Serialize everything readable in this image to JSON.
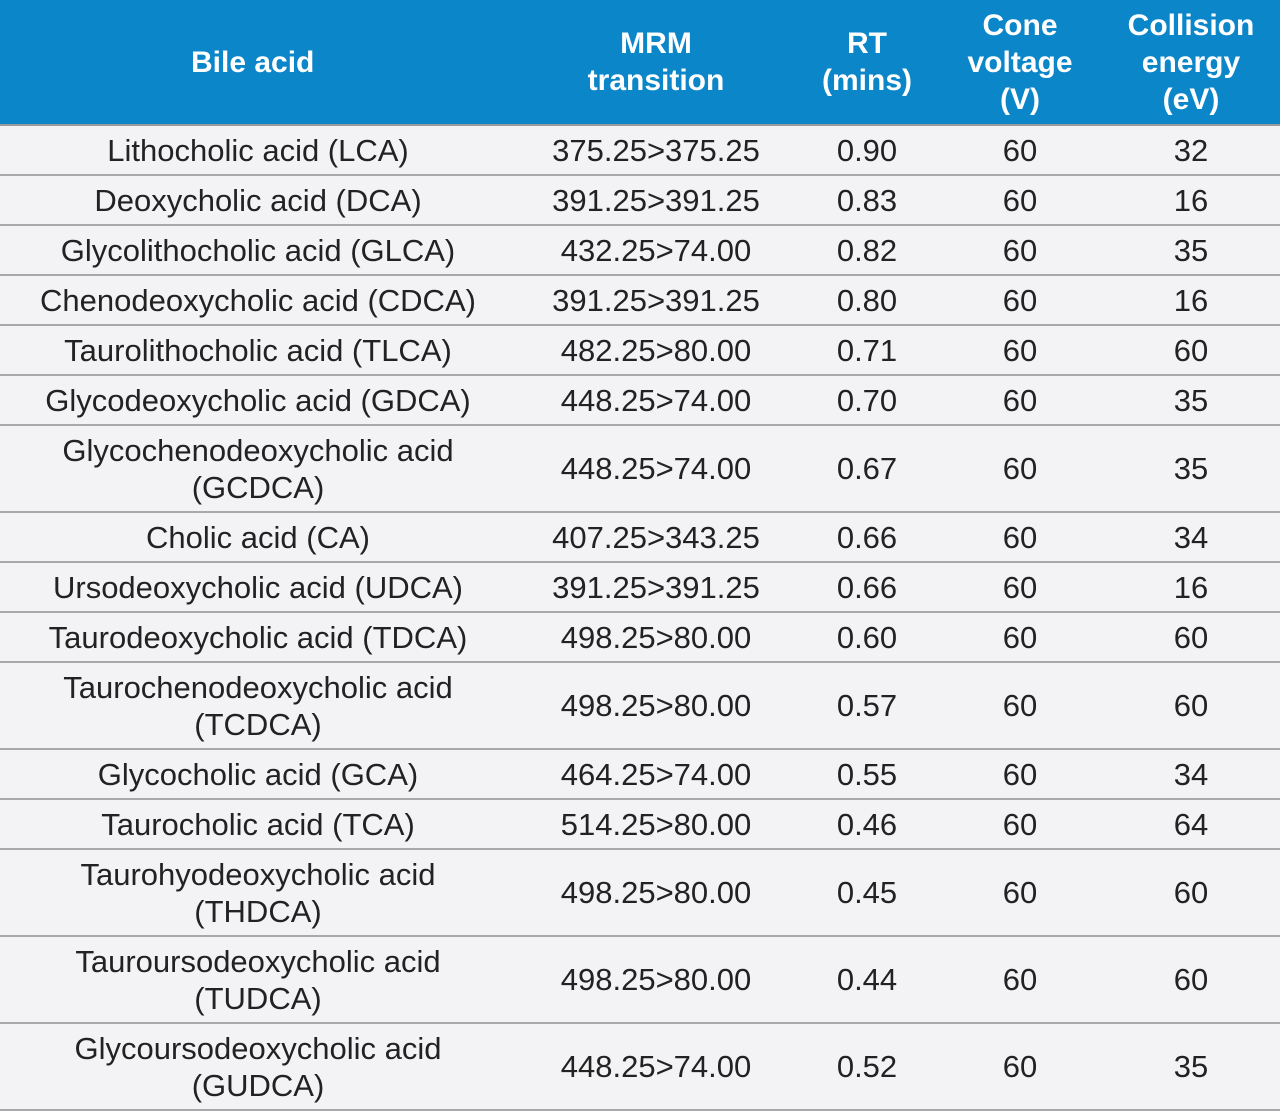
{
  "table": {
    "headers": {
      "bile_acid": "Bile acid",
      "mrm_line1": "MRM",
      "mrm_line2": "transition",
      "rt_line1": "RT",
      "rt_line2": "(mins)",
      "cone_line1": "Cone",
      "cone_line2": "voltage",
      "cone_line3": "(V)",
      "collision_line1": "Collision",
      "collision_line2": "energy",
      "collision_line3": "(eV)"
    },
    "rows": [
      {
        "name": "Lithocholic acid (LCA)",
        "name2": "",
        "mrm": "375.25>375.25",
        "rt": "0.90",
        "cone": "60",
        "collision": "32"
      },
      {
        "name": "Deoxycholic acid (DCA)",
        "name2": "",
        "mrm": "391.25>391.25",
        "rt": "0.83",
        "cone": "60",
        "collision": "16"
      },
      {
        "name": "Glycolithocholic acid (GLCA)",
        "name2": "",
        "mrm": "432.25>74.00",
        "rt": "0.82",
        "cone": "60",
        "collision": "35"
      },
      {
        "name": "Chenodeoxycholic acid (CDCA)",
        "name2": "",
        "mrm": "391.25>391.25",
        "rt": "0.80",
        "cone": "60",
        "collision": "16"
      },
      {
        "name": "Taurolithocholic acid (TLCA)",
        "name2": "",
        "mrm": "482.25>80.00",
        "rt": "0.71",
        "cone": "60",
        "collision": "60"
      },
      {
        "name": "Glycodeoxycholic acid (GDCA)",
        "name2": "",
        "mrm": "448.25>74.00",
        "rt": "0.70",
        "cone": "60",
        "collision": "35"
      },
      {
        "name": "Glycochenodeoxycholic acid",
        "name2": "(GCDCA)",
        "mrm": "448.25>74.00",
        "rt": "0.67",
        "cone": "60",
        "collision": "35"
      },
      {
        "name": "Cholic acid (CA)",
        "name2": "",
        "mrm": "407.25>343.25",
        "rt": "0.66",
        "cone": "60",
        "collision": "34"
      },
      {
        "name": "Ursodeoxycholic acid (UDCA)",
        "name2": "",
        "mrm": "391.25>391.25",
        "rt": "0.66",
        "cone": "60",
        "collision": "16"
      },
      {
        "name": "Taurodeoxycholic acid (TDCA)",
        "name2": "",
        "mrm": "498.25>80.00",
        "rt": "0.60",
        "cone": "60",
        "collision": "60"
      },
      {
        "name": "Taurochenodeoxycholic acid",
        "name2": "(TCDCA)",
        "mrm": "498.25>80.00",
        "rt": "0.57",
        "cone": "60",
        "collision": "60"
      },
      {
        "name": "Glycocholic acid (GCA)",
        "name2": "",
        "mrm": "464.25>74.00",
        "rt": "0.55",
        "cone": "60",
        "collision": "34"
      },
      {
        "name": "Taurocholic acid (TCA)",
        "name2": "",
        "mrm": "514.25>80.00",
        "rt": "0.46",
        "cone": "60",
        "collision": "64"
      },
      {
        "name": "Taurohyodeoxycholic acid",
        "name2": "(THDCA)",
        "mrm": "498.25>80.00",
        "rt": "0.45",
        "cone": "60",
        "collision": "60"
      },
      {
        "name": "Tauroursodeoxycholic acid",
        "name2": "(TUDCA)",
        "mrm": "498.25>80.00",
        "rt": "0.44",
        "cone": "60",
        "collision": "60"
      },
      {
        "name": "Glycoursodeoxycholic acid",
        "name2": "(GUDCA)",
        "mrm": "448.25>74.00",
        "rt": "0.52",
        "cone": "60",
        "collision": "35"
      }
    ]
  },
  "colors": {
    "header_background": "#0b86c9",
    "header_text": "#ffffff",
    "row_background": "#f3f3f5",
    "row_divider": "#a9a9a9"
  }
}
